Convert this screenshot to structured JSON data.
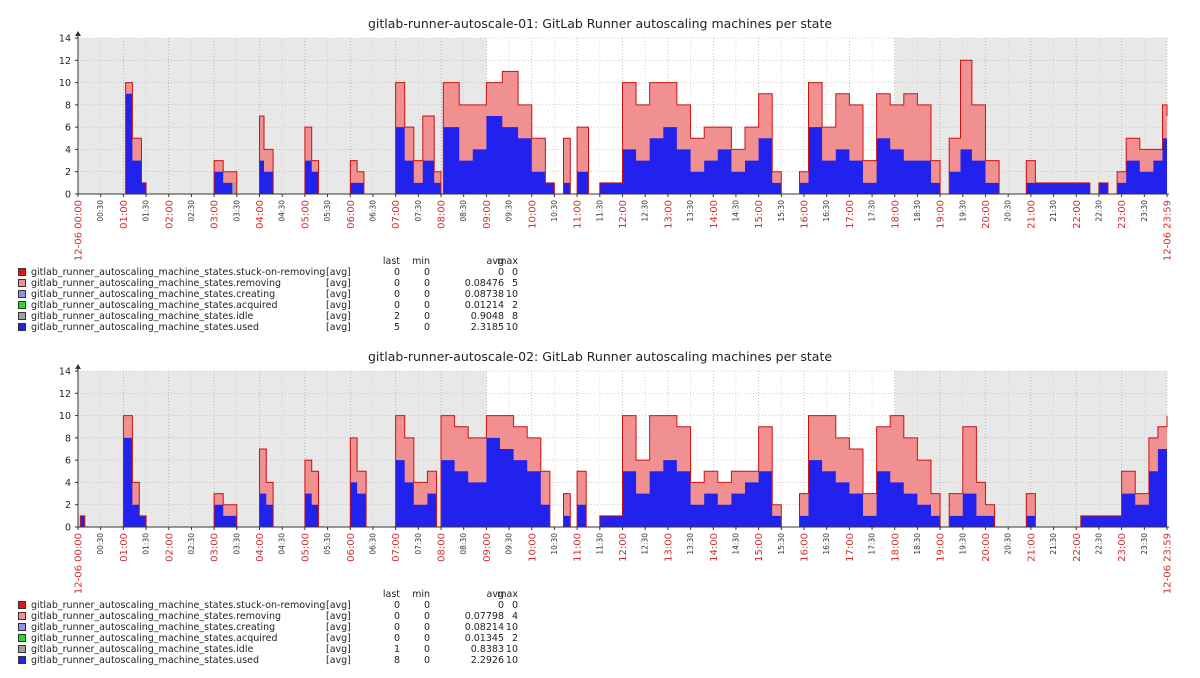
{
  "colors": {
    "stuck": "#ee1111",
    "removing": "#f09090",
    "creating": "#9090ee",
    "acquired": "#22dd22",
    "idle": "#a0a0a0",
    "used": "#2222ee",
    "outline": "#cc1111",
    "axis_accent": "#d03030",
    "axis_normal": "#333333",
    "night_bg": "#e8e8e8"
  },
  "legend_headers": {
    "last": "last",
    "min": "min",
    "avg": "avg",
    "max": "max"
  },
  "chart_data": [
    {
      "type": "area",
      "stacked": true,
      "title": "gitlab-runner-autoscale-01: GitLab Runner autoscaling machines per state",
      "xlabel": "",
      "ylabel": "",
      "ylim": [
        0,
        14
      ],
      "y_ticks": [
        "0",
        "2",
        "4",
        "6",
        "8",
        "10",
        "12",
        "14"
      ],
      "x_ticks": [
        "12-06 00:00",
        "00:30",
        "01:00",
        "01:30",
        "02:00",
        "02:30",
        "03:00",
        "03:30",
        "04:00",
        "04:30",
        "05:00",
        "05:30",
        "06:00",
        "06:30",
        "07:00",
        "07:30",
        "08:00",
        "08:30",
        "09:00",
        "09:30",
        "10:00",
        "10:30",
        "11:00",
        "11:30",
        "12:00",
        "12:30",
        "13:00",
        "13:30",
        "14:00",
        "14:30",
        "15:00",
        "15:30",
        "16:00",
        "16:30",
        "17:00",
        "17:30",
        "18:00",
        "18:30",
        "19:00",
        "19:30",
        "20:00",
        "20:30",
        "21:00",
        "21:30",
        "22:00",
        "22:30",
        "23:00",
        "23:30",
        "12-06 23:59"
      ],
      "x_tick_accent": [
        true,
        false,
        true,
        false,
        true,
        false,
        true,
        false,
        true,
        false,
        true,
        false,
        true,
        false,
        true,
        false,
        true,
        false,
        true,
        false,
        true,
        false,
        true,
        false,
        true,
        false,
        true,
        false,
        true,
        false,
        true,
        false,
        true,
        false,
        true,
        false,
        true,
        false,
        true,
        false,
        true,
        false,
        true,
        false,
        true,
        false,
        true,
        false,
        true
      ],
      "night_shading_hours": [
        [
          0,
          9
        ],
        [
          18,
          24
        ]
      ],
      "grid": true,
      "legend_placement": "bottom-left",
      "series": [
        {
          "name": "gitlab_runner_autoscaling_machine_states.stuck-on-removing",
          "fn": "[avg]",
          "color": "stuck",
          "last": "0",
          "min": "0",
          "avg": "0",
          "max": "0"
        },
        {
          "name": "gitlab_runner_autoscaling_machine_states.removing",
          "fn": "[avg]",
          "color": "removing",
          "last": "0",
          "min": "0",
          "avg": "0.08476",
          "max": "5"
        },
        {
          "name": "gitlab_runner_autoscaling_machine_states.creating",
          "fn": "[avg]",
          "color": "creating",
          "last": "0",
          "min": "0",
          "avg": "0.08738",
          "max": "10"
        },
        {
          "name": "gitlab_runner_autoscaling_machine_states.acquired",
          "fn": "[avg]",
          "color": "acquired",
          "last": "0",
          "min": "0",
          "avg": "0.01214",
          "max": "2"
        },
        {
          "name": "gitlab_runner_autoscaling_machine_states.idle",
          "fn": "[avg]",
          "color": "idle",
          "last": "2",
          "min": "0",
          "avg": "0.9048",
          "max": "8"
        },
        {
          "name": "gitlab_runner_autoscaling_machine_states.used",
          "fn": "[avg]",
          "color": "used",
          "last": "5",
          "min": "0",
          "avg": "2.3185",
          "max": "10"
        }
      ],
      "stack_points": [
        [
          0.0,
          0,
          0,
          0
        ],
        [
          1.0,
          0,
          0,
          0
        ],
        [
          1.05,
          9,
          1,
          10
        ],
        [
          1.2,
          3,
          1,
          5
        ],
        [
          1.4,
          1,
          0,
          1
        ],
        [
          1.5,
          0,
          0,
          0
        ],
        [
          3.0,
          2,
          1,
          3
        ],
        [
          3.2,
          1,
          1,
          2
        ],
        [
          3.4,
          0,
          1,
          2
        ],
        [
          3.5,
          0,
          0,
          0
        ],
        [
          4.0,
          3,
          2,
          7
        ],
        [
          4.1,
          2,
          1,
          4
        ],
        [
          4.3,
          0,
          0,
          0
        ],
        [
          5.0,
          3,
          1,
          6
        ],
        [
          5.15,
          2,
          1,
          3
        ],
        [
          5.3,
          0,
          0,
          0
        ],
        [
          6.0,
          1,
          1,
          3
        ],
        [
          6.15,
          1,
          0,
          2
        ],
        [
          6.3,
          0,
          0,
          0
        ],
        [
          7.0,
          6,
          2,
          10
        ],
        [
          7.2,
          3,
          2,
          6
        ],
        [
          7.4,
          1,
          1,
          3
        ],
        [
          7.6,
          3,
          2,
          7
        ],
        [
          7.85,
          1,
          1,
          2
        ],
        [
          8.0,
          0,
          0,
          0
        ],
        [
          8.05,
          6,
          2,
          10
        ],
        [
          8.4,
          3,
          2,
          8
        ],
        [
          8.7,
          4,
          2,
          8
        ],
        [
          9.0,
          7,
          2,
          10
        ],
        [
          9.35,
          6,
          2,
          11
        ],
        [
          9.7,
          5,
          2,
          8
        ],
        [
          10.0,
          2,
          1,
          5
        ],
        [
          10.3,
          1,
          0,
          1
        ],
        [
          10.5,
          0,
          0,
          0
        ],
        [
          10.7,
          1,
          0,
          5
        ],
        [
          10.85,
          0,
          0,
          0
        ],
        [
          11.0,
          2,
          1,
          6
        ],
        [
          11.25,
          0,
          0,
          0
        ],
        [
          11.5,
          1,
          0,
          1
        ],
        [
          12.0,
          4,
          2,
          10
        ],
        [
          12.3,
          3,
          2,
          8
        ],
        [
          12.6,
          5,
          2,
          10
        ],
        [
          12.9,
          6,
          2,
          10
        ],
        [
          13.2,
          4,
          2,
          8
        ],
        [
          13.5,
          2,
          1,
          5
        ],
        [
          13.8,
          3,
          2,
          6
        ],
        [
          14.1,
          4,
          1,
          6
        ],
        [
          14.4,
          2,
          1,
          4
        ],
        [
          14.7,
          3,
          2,
          6
        ],
        [
          15.0,
          5,
          2,
          9
        ],
        [
          15.3,
          1,
          0,
          2
        ],
        [
          15.5,
          0,
          0,
          0
        ],
        [
          15.9,
          1,
          0,
          2
        ],
        [
          16.1,
          6,
          2,
          10
        ],
        [
          16.4,
          3,
          2,
          6
        ],
        [
          16.7,
          4,
          2,
          9
        ],
        [
          17.0,
          3,
          2,
          8
        ],
        [
          17.3,
          1,
          1,
          3
        ],
        [
          17.6,
          5,
          2,
          9
        ],
        [
          17.9,
          4,
          2,
          8
        ],
        [
          18.2,
          3,
          2,
          9
        ],
        [
          18.5,
          3,
          2,
          8
        ],
        [
          18.8,
          1,
          1,
          3
        ],
        [
          19.0,
          0,
          0,
          0
        ],
        [
          19.2,
          2,
          1,
          5
        ],
        [
          19.45,
          4,
          2,
          12
        ],
        [
          19.7,
          3,
          2,
          8
        ],
        [
          20.0,
          1,
          1,
          3
        ],
        [
          20.3,
          0,
          0,
          0
        ],
        [
          20.9,
          1,
          1,
          3
        ],
        [
          21.1,
          1,
          0,
          1
        ],
        [
          22.1,
          1,
          0,
          1
        ],
        [
          22.3,
          0,
          0,
          0
        ],
        [
          22.5,
          1,
          0,
          1
        ],
        [
          22.7,
          0,
          0,
          0
        ],
        [
          22.9,
          1,
          0,
          2
        ],
        [
          23.1,
          3,
          1,
          5
        ],
        [
          23.4,
          2,
          1,
          4
        ],
        [
          23.7,
          3,
          1,
          4
        ],
        [
          23.9,
          5,
          2,
          8
        ],
        [
          24.0,
          5,
          2,
          7
        ]
      ]
    },
    {
      "type": "area",
      "stacked": true,
      "title": "gitlab-runner-autoscale-02: GitLab Runner autoscaling machines per state",
      "xlabel": "",
      "ylabel": "",
      "ylim": [
        0,
        14
      ],
      "y_ticks": [
        "0",
        "2",
        "4",
        "6",
        "8",
        "10",
        "12",
        "14"
      ],
      "x_ticks": [
        "12-06 00:00",
        "00:30",
        "01:00",
        "01:30",
        "02:00",
        "02:30",
        "03:00",
        "03:30",
        "04:00",
        "04:30",
        "05:00",
        "05:30",
        "06:00",
        "06:30",
        "07:00",
        "07:30",
        "08:00",
        "08:30",
        "09:00",
        "09:30",
        "10:00",
        "10:30",
        "11:00",
        "11:30",
        "12:00",
        "12:30",
        "13:00",
        "13:30",
        "14:00",
        "14:30",
        "15:00",
        "15:30",
        "16:00",
        "16:30",
        "17:00",
        "17:30",
        "18:00",
        "18:30",
        "19:00",
        "19:30",
        "20:00",
        "20:30",
        "21:00",
        "21:30",
        "22:00",
        "22:30",
        "23:00",
        "23:30",
        "12-06 23:59"
      ],
      "x_tick_accent": [
        true,
        false,
        true,
        false,
        true,
        false,
        true,
        false,
        true,
        false,
        true,
        false,
        true,
        false,
        true,
        false,
        true,
        false,
        true,
        false,
        true,
        false,
        true,
        false,
        true,
        false,
        true,
        false,
        true,
        false,
        true,
        false,
        true,
        false,
        true,
        false,
        true,
        false,
        true,
        false,
        true,
        false,
        true,
        false,
        true,
        false,
        true,
        false,
        true
      ],
      "night_shading_hours": [
        [
          0,
          9
        ],
        [
          18,
          24
        ]
      ],
      "grid": true,
      "legend_placement": "bottom-left",
      "series": [
        {
          "name": "gitlab_runner_autoscaling_machine_states.stuck-on-removing",
          "fn": "[avg]",
          "color": "stuck",
          "last": "0",
          "min": "0",
          "avg": "0",
          "max": "0"
        },
        {
          "name": "gitlab_runner_autoscaling_machine_states.removing",
          "fn": "[avg]",
          "color": "removing",
          "last": "0",
          "min": "0",
          "avg": "0.07798",
          "max": "4"
        },
        {
          "name": "gitlab_runner_autoscaling_machine_states.creating",
          "fn": "[avg]",
          "color": "creating",
          "last": "0",
          "min": "0",
          "avg": "0.08214",
          "max": "10"
        },
        {
          "name": "gitlab_runner_autoscaling_machine_states.acquired",
          "fn": "[avg]",
          "color": "acquired",
          "last": "0",
          "min": "0",
          "avg": "0.01345",
          "max": "2"
        },
        {
          "name": "gitlab_runner_autoscaling_machine_states.idle",
          "fn": "[avg]",
          "color": "idle",
          "last": "1",
          "min": "0",
          "avg": "0.8383",
          "max": "10"
        },
        {
          "name": "gitlab_runner_autoscaling_machine_states.used",
          "fn": "[avg]",
          "color": "used",
          "last": "8",
          "min": "0",
          "avg": "2.2926",
          "max": "10"
        }
      ],
      "stack_points": [
        [
          0.0,
          0,
          0,
          0
        ],
        [
          0.05,
          1,
          0,
          1
        ],
        [
          0.15,
          0,
          0,
          0
        ],
        [
          1.0,
          8,
          2,
          10
        ],
        [
          1.2,
          2,
          1,
          4
        ],
        [
          1.35,
          1,
          0,
          1
        ],
        [
          1.5,
          0,
          0,
          0
        ],
        [
          3.0,
          2,
          1,
          3
        ],
        [
          3.2,
          1,
          0,
          2
        ],
        [
          3.4,
          1,
          1,
          2
        ],
        [
          3.5,
          0,
          0,
          0
        ],
        [
          4.0,
          3,
          2,
          7
        ],
        [
          4.15,
          2,
          1,
          4
        ],
        [
          4.3,
          0,
          0,
          0
        ],
        [
          5.0,
          3,
          1,
          6
        ],
        [
          5.15,
          2,
          1,
          5
        ],
        [
          5.3,
          0,
          0,
          0
        ],
        [
          6.0,
          4,
          2,
          8
        ],
        [
          6.15,
          3,
          1,
          5
        ],
        [
          6.35,
          0,
          0,
          0
        ],
        [
          7.0,
          6,
          2,
          10
        ],
        [
          7.2,
          4,
          2,
          8
        ],
        [
          7.4,
          2,
          1,
          4
        ],
        [
          7.7,
          3,
          1,
          5
        ],
        [
          7.9,
          0,
          0,
          0
        ],
        [
          8.0,
          6,
          2,
          10
        ],
        [
          8.3,
          5,
          2,
          9
        ],
        [
          8.6,
          4,
          2,
          8
        ],
        [
          9.0,
          8,
          2,
          10
        ],
        [
          9.3,
          7,
          2,
          10
        ],
        [
          9.6,
          6,
          2,
          9
        ],
        [
          9.9,
          5,
          2,
          8
        ],
        [
          10.2,
          2,
          1,
          5
        ],
        [
          10.4,
          0,
          0,
          0
        ],
        [
          10.7,
          1,
          0,
          3
        ],
        [
          10.85,
          0,
          0,
          0
        ],
        [
          11.0,
          2,
          1,
          5
        ],
        [
          11.2,
          0,
          0,
          0
        ],
        [
          11.5,
          1,
          0,
          1
        ],
        [
          12.0,
          5,
          2,
          10
        ],
        [
          12.3,
          3,
          2,
          6
        ],
        [
          12.6,
          5,
          2,
          10
        ],
        [
          12.9,
          6,
          2,
          10
        ],
        [
          13.2,
          5,
          2,
          9
        ],
        [
          13.5,
          2,
          1,
          4
        ],
        [
          13.8,
          3,
          1,
          5
        ],
        [
          14.1,
          2,
          1,
          4
        ],
        [
          14.4,
          3,
          2,
          5
        ],
        [
          14.7,
          4,
          1,
          5
        ],
        [
          15.0,
          5,
          2,
          9
        ],
        [
          15.3,
          1,
          0,
          2
        ],
        [
          15.5,
          0,
          0,
          0
        ],
        [
          15.9,
          1,
          1,
          3
        ],
        [
          16.1,
          6,
          2,
          10
        ],
        [
          16.4,
          5,
          2,
          10
        ],
        [
          16.7,
          4,
          2,
          8
        ],
        [
          17.0,
          3,
          2,
          7
        ],
        [
          17.3,
          1,
          1,
          3
        ],
        [
          17.6,
          5,
          2,
          9
        ],
        [
          17.9,
          4,
          2,
          10
        ],
        [
          18.2,
          3,
          2,
          8
        ],
        [
          18.5,
          2,
          1,
          6
        ],
        [
          18.8,
          1,
          1,
          3
        ],
        [
          19.0,
          0,
          0,
          0
        ],
        [
          19.2,
          1,
          1,
          3
        ],
        [
          19.5,
          3,
          2,
          9
        ],
        [
          19.8,
          1,
          1,
          4
        ],
        [
          20.0,
          1,
          1,
          2
        ],
        [
          20.2,
          0,
          0,
          0
        ],
        [
          20.9,
          1,
          1,
          3
        ],
        [
          21.1,
          0,
          0,
          0
        ],
        [
          22.1,
          1,
          0,
          1
        ],
        [
          22.8,
          1,
          0,
          1
        ],
        [
          23.0,
          3,
          1,
          5
        ],
        [
          23.3,
          2,
          1,
          3
        ],
        [
          23.6,
          5,
          2,
          8
        ],
        [
          23.8,
          7,
          2,
          9
        ],
        [
          24.0,
          8,
          2,
          10
        ]
      ]
    }
  ]
}
